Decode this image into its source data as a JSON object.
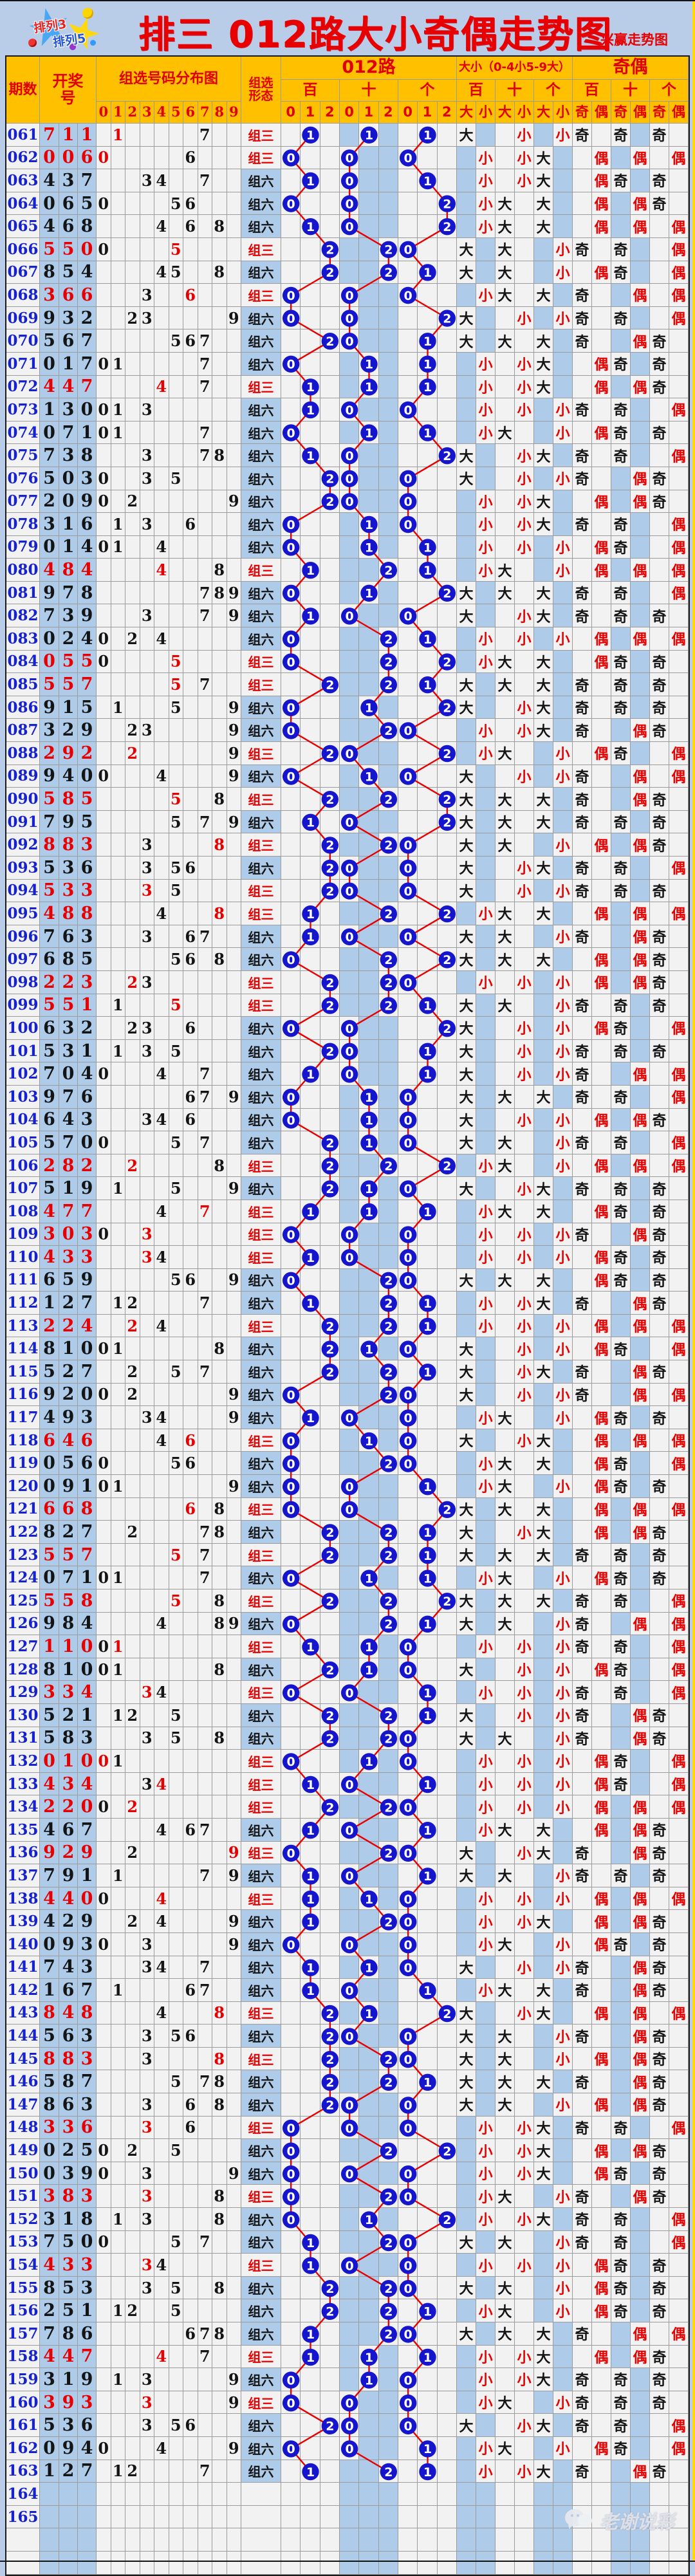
{
  "banner": {
    "title": "排三 012路大小奇偶走势图",
    "subtitle": "兴赢走势图",
    "logo_line1": "排列3",
    "logo_line2": "排列5"
  },
  "header": {
    "period": "期数",
    "draw": "开奖号",
    "distribution": "组选号码分布图",
    "distribution_digits": [
      "0",
      "1",
      "2",
      "3",
      "4",
      "5",
      "6",
      "7",
      "8",
      "9"
    ],
    "form": "组选形态",
    "route_title": "012路",
    "route_positions": [
      "百",
      "十",
      "个"
    ],
    "route_digits": [
      "0",
      "1",
      "2"
    ],
    "size_title": "大小（0-4小5-9大）",
    "size_positions": [
      "百",
      "十",
      "个"
    ],
    "size_labels": [
      "大",
      "小"
    ],
    "parity_title": "奇偶",
    "parity_positions": [
      "百",
      "十",
      "个"
    ],
    "parity_labels": [
      "奇",
      "偶"
    ]
  },
  "values": {
    "form_triple": "组三",
    "form_six": "组六",
    "big": "大",
    "small": "小",
    "odd": "奇",
    "even": "偶"
  },
  "watermark": {
    "text": "老谢说彩"
  },
  "colors": {
    "page_bg": "#b9cde8",
    "header_bg": "#ffc000",
    "header_text": "#e00000",
    "cell_bg": "#f2f2f2",
    "band_bg": "#aecbe9",
    "period_text": "#1622cf",
    "red": "#e80000",
    "black": "#141414",
    "circle_fill": "#1515cd",
    "trend_line": "#e80000",
    "grid_line": "#9b9b9b"
  },
  "rows": [
    {
      "p": "061",
      "n": "711"
    },
    {
      "p": "062",
      "n": "006"
    },
    {
      "p": "063",
      "n": "437"
    },
    {
      "p": "064",
      "n": "065"
    },
    {
      "p": "065",
      "n": "468"
    },
    {
      "p": "066",
      "n": "550"
    },
    {
      "p": "067",
      "n": "854"
    },
    {
      "p": "068",
      "n": "366"
    },
    {
      "p": "069",
      "n": "932"
    },
    {
      "p": "070",
      "n": "567"
    },
    {
      "p": "071",
      "n": "017"
    },
    {
      "p": "072",
      "n": "447"
    },
    {
      "p": "073",
      "n": "130"
    },
    {
      "p": "074",
      "n": "071"
    },
    {
      "p": "075",
      "n": "738"
    },
    {
      "p": "076",
      "n": "503"
    },
    {
      "p": "077",
      "n": "209"
    },
    {
      "p": "078",
      "n": "316"
    },
    {
      "p": "079",
      "n": "014"
    },
    {
      "p": "080",
      "n": "484"
    },
    {
      "p": "081",
      "n": "978"
    },
    {
      "p": "082",
      "n": "739"
    },
    {
      "p": "083",
      "n": "024"
    },
    {
      "p": "084",
      "n": "055"
    },
    {
      "p": "085",
      "n": "557"
    },
    {
      "p": "086",
      "n": "915"
    },
    {
      "p": "087",
      "n": "329"
    },
    {
      "p": "088",
      "n": "292"
    },
    {
      "p": "089",
      "n": "940"
    },
    {
      "p": "090",
      "n": "585"
    },
    {
      "p": "091",
      "n": "795"
    },
    {
      "p": "092",
      "n": "883"
    },
    {
      "p": "093",
      "n": "536"
    },
    {
      "p": "094",
      "n": "533"
    },
    {
      "p": "095",
      "n": "488"
    },
    {
      "p": "096",
      "n": "763"
    },
    {
      "p": "097",
      "n": "685"
    },
    {
      "p": "098",
      "n": "223"
    },
    {
      "p": "099",
      "n": "551"
    },
    {
      "p": "100",
      "n": "632"
    },
    {
      "p": "101",
      "n": "531"
    },
    {
      "p": "102",
      "n": "704"
    },
    {
      "p": "103",
      "n": "976"
    },
    {
      "p": "104",
      "n": "643"
    },
    {
      "p": "105",
      "n": "570"
    },
    {
      "p": "106",
      "n": "282"
    },
    {
      "p": "107",
      "n": "519"
    },
    {
      "p": "108",
      "n": "477"
    },
    {
      "p": "109",
      "n": "303"
    },
    {
      "p": "110",
      "n": "433"
    },
    {
      "p": "111",
      "n": "659"
    },
    {
      "p": "112",
      "n": "127"
    },
    {
      "p": "113",
      "n": "224"
    },
    {
      "p": "114",
      "n": "810"
    },
    {
      "p": "115",
      "n": "527"
    },
    {
      "p": "116",
      "n": "920"
    },
    {
      "p": "117",
      "n": "493"
    },
    {
      "p": "118",
      "n": "646"
    },
    {
      "p": "119",
      "n": "056"
    },
    {
      "p": "120",
      "n": "091"
    },
    {
      "p": "121",
      "n": "668"
    },
    {
      "p": "122",
      "n": "827"
    },
    {
      "p": "123",
      "n": "557"
    },
    {
      "p": "124",
      "n": "071"
    },
    {
      "p": "125",
      "n": "558"
    },
    {
      "p": "126",
      "n": "984"
    },
    {
      "p": "127",
      "n": "110"
    },
    {
      "p": "128",
      "n": "810"
    },
    {
      "p": "129",
      "n": "334"
    },
    {
      "p": "130",
      "n": "521"
    },
    {
      "p": "131",
      "n": "583"
    },
    {
      "p": "132",
      "n": "010"
    },
    {
      "p": "133",
      "n": "434"
    },
    {
      "p": "134",
      "n": "220"
    },
    {
      "p": "135",
      "n": "467"
    },
    {
      "p": "136",
      "n": "929"
    },
    {
      "p": "137",
      "n": "791"
    },
    {
      "p": "138",
      "n": "440"
    },
    {
      "p": "139",
      "n": "429"
    },
    {
      "p": "140",
      "n": "093"
    },
    {
      "p": "141",
      "n": "743"
    },
    {
      "p": "142",
      "n": "167"
    },
    {
      "p": "143",
      "n": "848"
    },
    {
      "p": "144",
      "n": "563"
    },
    {
      "p": "145",
      "n": "883"
    },
    {
      "p": "146",
      "n": "587"
    },
    {
      "p": "147",
      "n": "863"
    },
    {
      "p": "148",
      "n": "336"
    },
    {
      "p": "149",
      "n": "025"
    },
    {
      "p": "150",
      "n": "039"
    },
    {
      "p": "151",
      "n": "383"
    },
    {
      "p": "152",
      "n": "318"
    },
    {
      "p": "153",
      "n": "750"
    },
    {
      "p": "154",
      "n": "433"
    },
    {
      "p": "155",
      "n": "853"
    },
    {
      "p": "156",
      "n": "251"
    },
    {
      "p": "157",
      "n": "786"
    },
    {
      "p": "158",
      "n": "447"
    },
    {
      "p": "159",
      "n": "319"
    },
    {
      "p": "160",
      "n": "393"
    },
    {
      "p": "161",
      "n": "536"
    },
    {
      "p": "162",
      "n": "094"
    },
    {
      "p": "163",
      "n": "127"
    },
    {
      "p": "164",
      "n": ""
    },
    {
      "p": "165",
      "n": ""
    },
    {
      "p": "",
      "n": ""
    },
    {
      "p": "",
      "n": ""
    }
  ],
  "chart_data": {
    "type": "table",
    "title": "排三 012路大小奇偶走势图",
    "subtitle": "兴赢走势图",
    "columns": [
      "期数",
      "开奖号",
      "组选号码分布图(0-9)",
      "组选形态",
      "012路(百/十/个:0,1,2)",
      "大小(0-4小5-9大)(百/十/个)",
      "奇偶(百/十/个)"
    ],
    "periods_range": [
      "061",
      "165"
    ],
    "derivation_rules": {
      "route": "digit mod 3 plotted as blue circle with red trend line, per 百/十/个",
      "size": "digit>=5 → 大(black), else 小(red)",
      "parity": "odd digit → 奇(black), even → 偶(red)",
      "form": "two equal digits → 组三(red/white cell), all different → 组六(black/blue cell)"
    }
  }
}
